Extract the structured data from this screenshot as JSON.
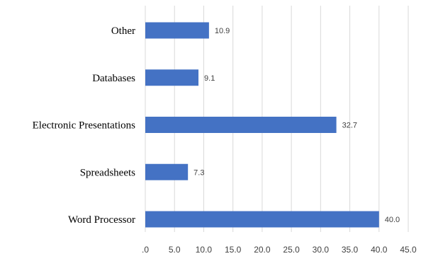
{
  "chart_data": {
    "type": "bar",
    "orientation": "horizontal",
    "categories": [
      "Other",
      "Databases",
      "Electronic Presentations",
      "Spreadsheets",
      "Word Processor"
    ],
    "values": [
      10.9,
      9.1,
      32.7,
      7.3,
      40.0
    ],
    "value_labels": [
      "10.9",
      "9.1",
      "32.7",
      "7.3",
      "40.0"
    ],
    "x_ticks": [
      0,
      5,
      10,
      15,
      20,
      25,
      30,
      35,
      40,
      45
    ],
    "x_tick_labels": [
      ".0",
      "5.0",
      "10.0",
      "15.0",
      "20.0",
      "25.0",
      "30.0",
      "35.0",
      "40.0",
      "45.0"
    ],
    "xlim": [
      0,
      45
    ],
    "grid": "vertical",
    "legend": "none",
    "bar_color": "#4472C4",
    "grid_color": "#D9D9D9",
    "title": "",
    "xlabel": "",
    "ylabel": ""
  }
}
